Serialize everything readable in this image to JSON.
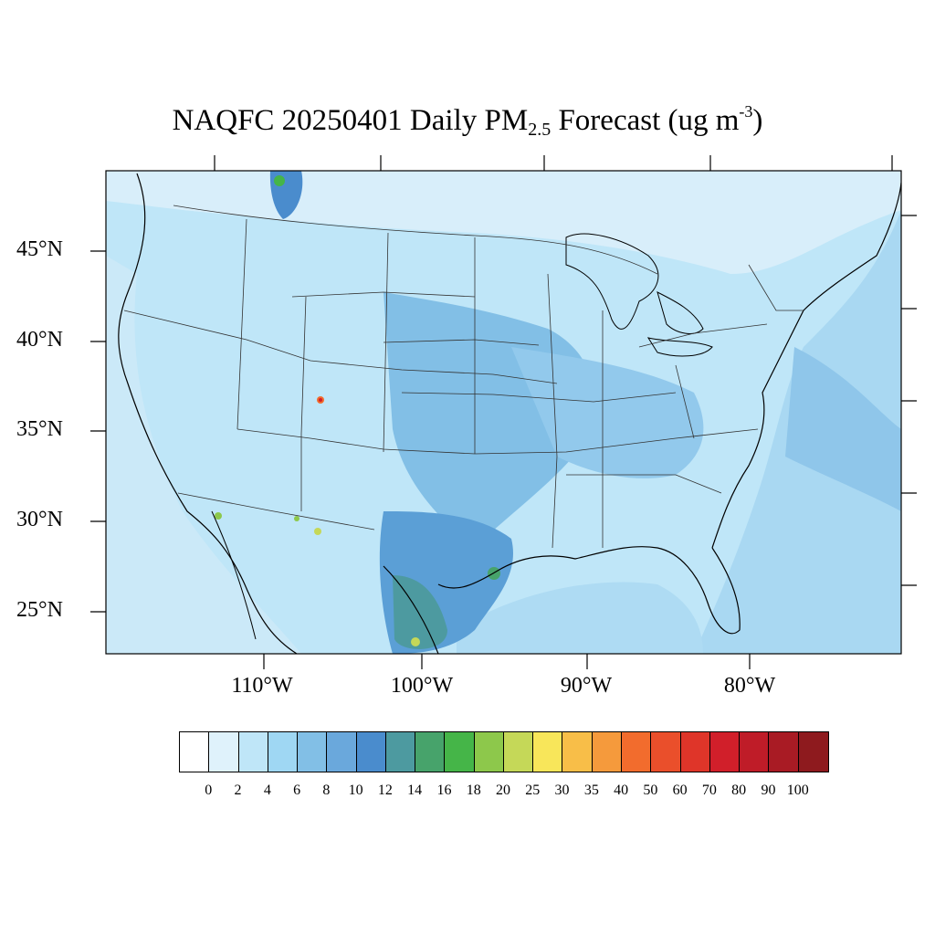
{
  "title": {
    "main": "NAQFC 20250401 Daily PM",
    "subscript": "2.5",
    "suffix": " Forecast (ug m",
    "superscript": "-3",
    "close": ")"
  },
  "map": {
    "projection": "Lambert Conformal Conic",
    "background_level_color": "#c4e6f8",
    "ocean_color": "#bde3f7",
    "lat_labels": [
      "45°N",
      "40°N",
      "35°N",
      "30°N",
      "25°N"
    ],
    "lon_labels": [
      "110°W",
      "100°W",
      "90°W",
      "80°W"
    ]
  },
  "colorbar": {
    "levels": [
      "0",
      "2",
      "4",
      "6",
      "8",
      "10",
      "12",
      "14",
      "16",
      "18",
      "20",
      "25",
      "30",
      "35",
      "40",
      "50",
      "60",
      "70",
      "80",
      "90",
      "100"
    ],
    "colors": [
      "#ffffff",
      "#dff2fb",
      "#bfe6f8",
      "#9fd7f3",
      "#82bfe6",
      "#6aa8dc",
      "#4a8ccd",
      "#4d9aa0",
      "#47a36b",
      "#45b548",
      "#8dc84b",
      "#c5d858",
      "#f8e65a",
      "#f8be48",
      "#f59a3c",
      "#f26c2d",
      "#ea4f2b",
      "#df3529",
      "#d11f2a",
      "#bf1c28",
      "#a91b24",
      "#8e1a1e"
    ]
  }
}
